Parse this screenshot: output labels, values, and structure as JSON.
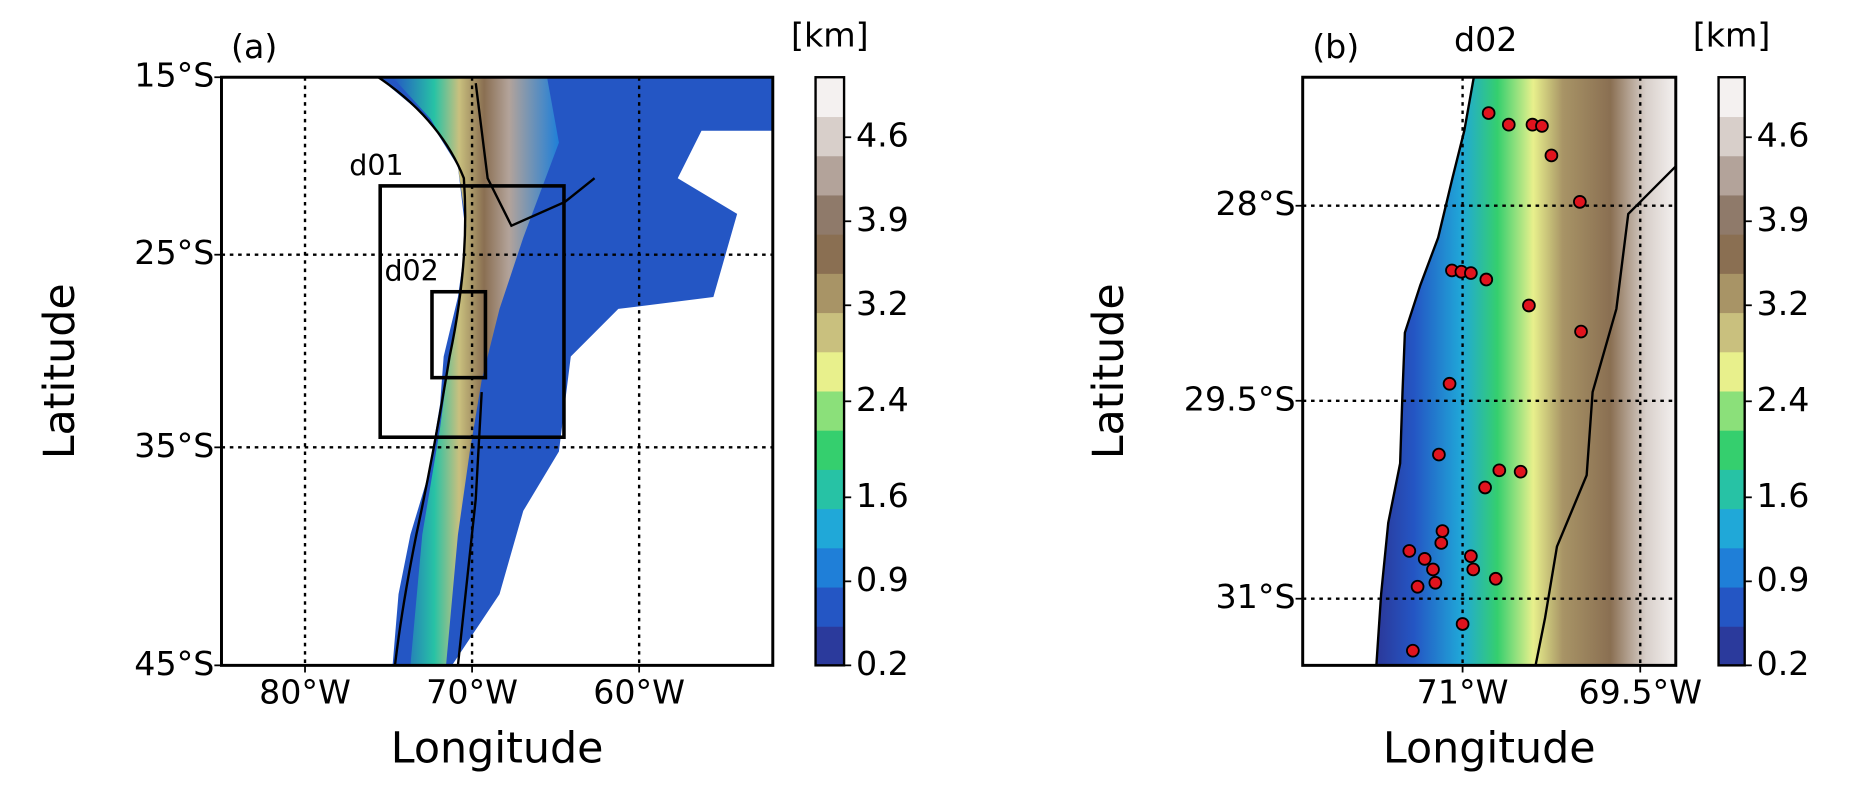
{
  "panels": [
    {
      "label": "(a)",
      "projection": "mercator",
      "xlabel": "Longitude",
      "ylabel": "Latitude",
      "xlim": [
        -85,
        -52
      ],
      "ylim": [
        -45,
        -15
      ],
      "xticks": [
        {
          "value": -80,
          "label": "80°W"
        },
        {
          "value": -70,
          "label": "70°W"
        },
        {
          "value": -60,
          "label": "60°W"
        }
      ],
      "yticks": [
        {
          "value": -15,
          "label": "15°S"
        },
        {
          "value": -25,
          "label": "25°S"
        },
        {
          "value": -35,
          "label": "35°S"
        },
        {
          "value": -45,
          "label": "45°S"
        }
      ],
      "grid": true,
      "domains": [
        {
          "name": "d01",
          "lon": [
            -75.5,
            -64.5
          ],
          "lat": [
            -34.5,
            -21.2
          ]
        },
        {
          "name": "d02",
          "lon": [
            -72.4,
            -69.2
          ],
          "lat": [
            -31.5,
            -27.0
          ]
        }
      ]
    },
    {
      "label": "(b)",
      "title": "d02",
      "projection": "mercator",
      "xlabel": "Longitude",
      "ylabel": "Latitude",
      "xlim": [
        -72.35,
        -69.2
      ],
      "ylim": [
        -31.5,
        -27.0
      ],
      "xticks": [
        {
          "value": -71,
          "label": "71°W"
        },
        {
          "value": -69.5,
          "label": "69.5°W"
        }
      ],
      "yticks": [
        {
          "value": -28,
          "label": "28°S"
        },
        {
          "value": -29.5,
          "label": "29.5°S"
        },
        {
          "value": -31,
          "label": "31°S"
        }
      ],
      "grid": true,
      "stations": {
        "color": "#e0141e",
        "lon": [
          -70.78,
          -70.61,
          -70.41,
          -70.33,
          -70.25,
          -70.01,
          -71.09,
          -71.01,
          -70.93,
          -70.8,
          -70.44,
          -70.0,
          -71.11,
          -71.2,
          -70.69,
          -70.51,
          -70.81,
          -71.17,
          -71.18,
          -71.45,
          -71.32,
          -71.25,
          -70.93,
          -70.91,
          -71.38,
          -71.23,
          -70.72,
          -71.0,
          -71.42
        ],
        "lat": [
          -27.28,
          -27.37,
          -27.37,
          -27.38,
          -27.61,
          -27.97,
          -28.5,
          -28.51,
          -28.52,
          -28.57,
          -28.77,
          -28.97,
          -29.37,
          -29.91,
          -30.03,
          -30.04,
          -30.16,
          -30.49,
          -30.58,
          -30.64,
          -30.7,
          -30.78,
          -30.68,
          -30.78,
          -30.91,
          -30.88,
          -30.85,
          -31.19,
          -31.39
        ]
      }
    }
  ],
  "colorbar": {
    "label": "[km]",
    "lim": [
      0.2,
      5.1
    ],
    "ticks": [
      0.2,
      0.9,
      1.6,
      2.4,
      3.2,
      3.9,
      4.6
    ],
    "colors": [
      "#2b3a9c",
      "#2456c4",
      "#1f7fd8",
      "#20a8d8",
      "#27c2a5",
      "#35cf6e",
      "#8be07a",
      "#e8f08c",
      "#c9c07e",
      "#a89466",
      "#8a6f52",
      "#8f7a6a",
      "#b3a39a",
      "#d8cfca",
      "#f4f1f0"
    ]
  }
}
